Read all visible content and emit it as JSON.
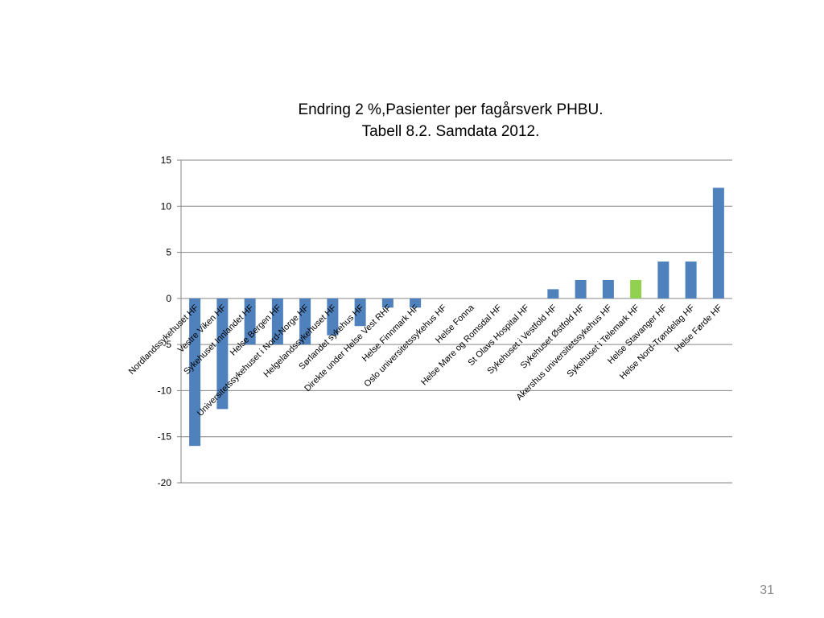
{
  "slide": {
    "number": "31"
  },
  "chart_data": {
    "type": "bar",
    "title": [
      "Endring 2 %,Pasienter per fagårsverk PHBU.",
      "Tabell 8.2. Samdata 2012."
    ],
    "xlabel": "",
    "ylabel": "",
    "ylim": [
      -20,
      15
    ],
    "yticks": [
      -20,
      -15,
      -10,
      -5,
      0,
      5,
      10,
      15
    ],
    "grid": true,
    "legend": "none",
    "colors": {
      "default": "#4f81bd",
      "highlight": "#92d050",
      "grid": "#868686"
    },
    "categories": [
      "Nordlandssykehuset HF",
      "Vestre Viken HF",
      "Sykehuset Innlandet HF",
      "Helse Bergen HF",
      "Universitetssykehuset i Nord-Norge HF",
      "Helgelandssykehuset HF",
      "Sørlandet sykehus HF",
      "Direkte under Helse Vest RHF",
      "Helse Finnmark HF",
      "Oslo universitetssykehus HF",
      "Helse Fonna",
      "Helse Møre og Romsdal HF",
      "St Olavs Hospital HF",
      "Sykehuset i Vestfold HF",
      "Sykehuset Østfold HF",
      "Akershus universitetssykehus HF",
      "Sykehuset i Telemark HF",
      "Helse Stavanger HF",
      "Helse Nord-Trøndelag HF",
      "Helse Førde HF"
    ],
    "values": [
      -16,
      -12,
      -5,
      -5,
      -5,
      -4,
      -3,
      -1,
      -1,
      0,
      0,
      0,
      0,
      1,
      2,
      2,
      2,
      4,
      4,
      12
    ],
    "highlight_index": 16
  }
}
